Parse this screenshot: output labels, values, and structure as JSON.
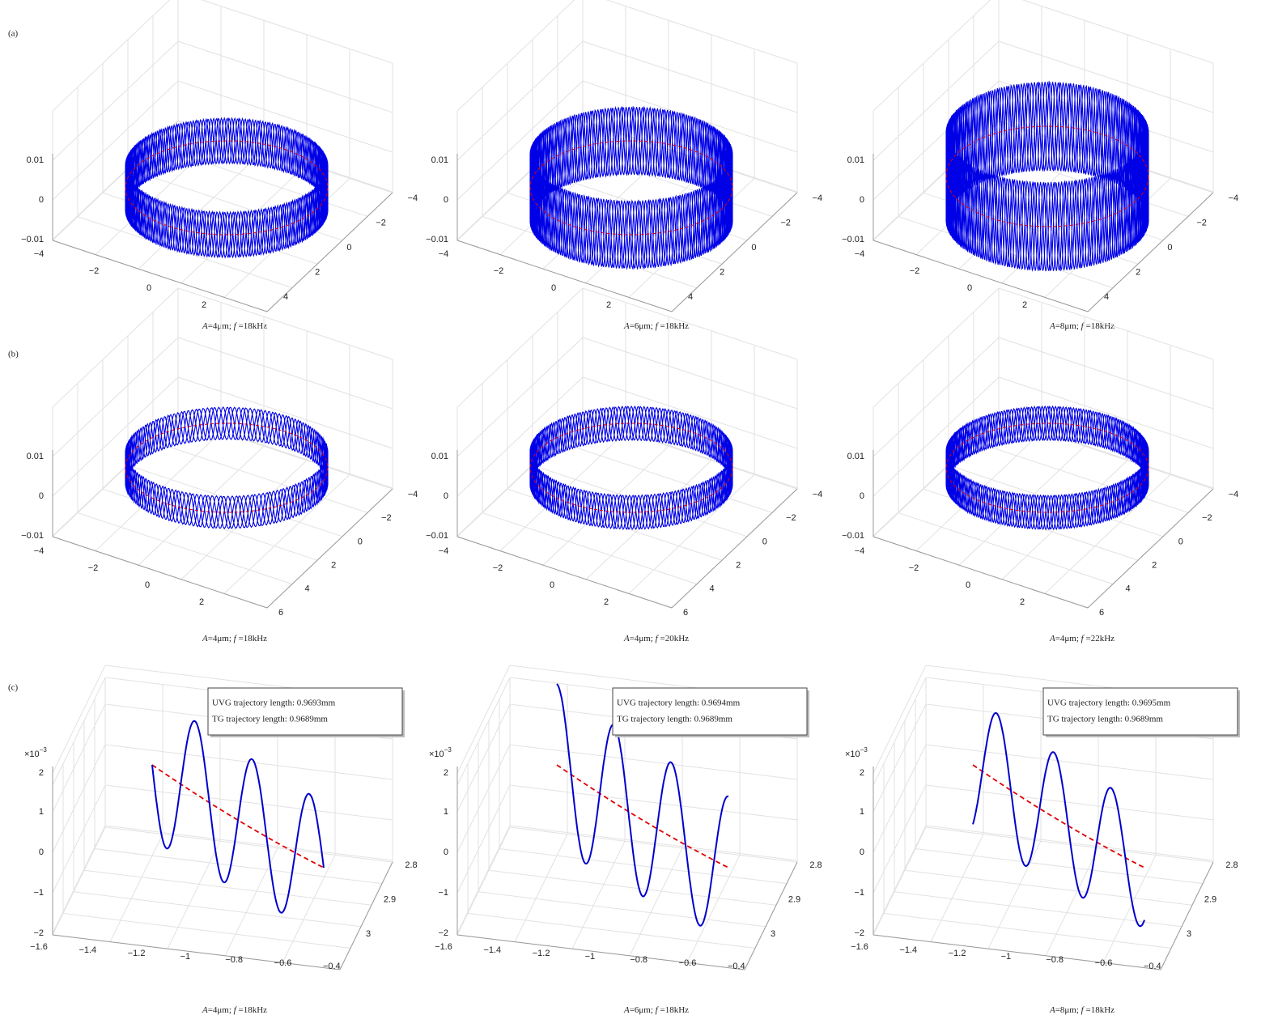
{
  "panels": [
    {
      "label": "(a)",
      "z_ticks": [
        "0.01",
        "0",
        "−0.01"
      ],
      "x_ticks": [
        "−4",
        "−2",
        "0",
        "2"
      ],
      "y_ticks": [
        "4",
        "2",
        "0",
        "−2",
        "−4"
      ],
      "plots": [
        {
          "caption": {
            "symbol1": "A",
            "text1": "=4μm; ",
            "symbol2": "f",
            "text2": " =18kHz"
          }
        },
        {
          "caption": {
            "symbol1": "A",
            "text1": "=6μm; ",
            "symbol2": "f",
            "text2": " =18kHz"
          }
        },
        {
          "caption": {
            "symbol1": "A",
            "text1": "=8μm; ",
            "symbol2": "f",
            "text2": " =18kHz"
          }
        }
      ]
    },
    {
      "label": "(b)",
      "z_ticks": [
        "0.01",
        "0",
        "−0.01"
      ],
      "x_ticks": [
        "−4",
        "−2",
        "0",
        "2"
      ],
      "y_ticks": [
        "6",
        "4",
        "2",
        "0",
        "−2",
        "−4"
      ],
      "plots": [
        {
          "caption": {
            "symbol1": "A",
            "text1": "=4μm; ",
            "symbol2": "f",
            "text2": " =18kHz"
          }
        },
        {
          "caption": {
            "symbol1": "A",
            "text1": "=4μm; ",
            "symbol2": "f",
            "text2": " =20kHz"
          }
        },
        {
          "caption": {
            "symbol1": "A",
            "text1": "=4μm; ",
            "symbol2": "f",
            "text2": " =22kHz"
          }
        }
      ]
    },
    {
      "label": "(c)",
      "exponent": {
        "base": "×10",
        "power": "−3"
      },
      "z_ticks": [
        "2",
        "1",
        "0",
        "−1",
        "−2"
      ],
      "x_ticks": [
        "−1.6",
        "−1.4",
        "−1.2",
        "−1",
        "−0.8",
        "−0.6",
        "−0.4"
      ],
      "y_ticks": [
        "3",
        "2.9",
        "2.8"
      ],
      "plots": [
        {
          "caption": {
            "symbol1": "A",
            "text1": "=4μm; ",
            "symbol2": "f",
            "text2": " =18kHz"
          },
          "legend": [
            "UVG trajectory length: 0.9693mm",
            "TG trajectory length: 0.9689mm"
          ]
        },
        {
          "caption": {
            "symbol1": "A",
            "text1": "=6μm; ",
            "symbol2": "f",
            "text2": " =18kHz"
          },
          "legend": [
            "UVG trajectory length: 0.9694mm",
            "TG trajectory length: 0.9689mm"
          ]
        },
        {
          "caption": {
            "symbol1": "A",
            "text1": "=8μm; ",
            "symbol2": "f",
            "text2": " =18kHz"
          },
          "legend": [
            "UVG trajectory length: 0.9695mm",
            "TG trajectory length: 0.9689mm"
          ]
        }
      ]
    }
  ]
}
